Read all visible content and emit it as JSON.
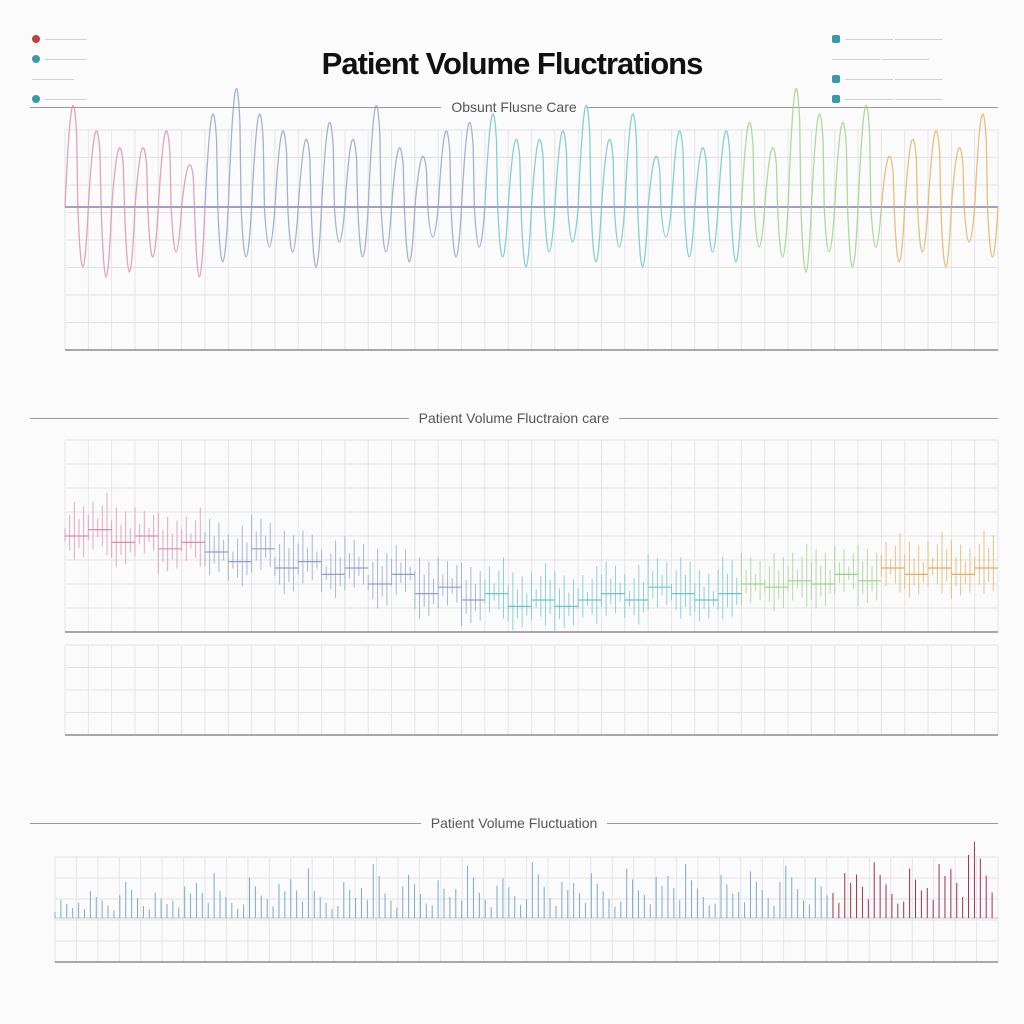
{
  "title": "Patient Volume Fluctrations",
  "colors": {
    "pink": "#d98fa8",
    "blue": "#8fa0c8",
    "teal": "#6cc4c8",
    "green": "#9ccf8a",
    "orange": "#e0b060",
    "red": "#a03050"
  },
  "chart_data": [
    {
      "type": "line",
      "title": "Obsunt Flusne Care",
      "peaks": [
        60,
        45,
        35,
        35,
        45,
        25,
        55,
        70,
        55,
        45,
        40,
        50,
        40,
        60,
        35,
        30,
        45,
        50,
        55,
        40,
        40,
        45,
        60,
        40,
        55,
        30,
        45,
        35,
        45,
        50,
        35,
        70,
        55,
        50,
        60,
        30,
        40,
        45,
        35,
        55
      ],
      "troughs": [
        -120,
        -140,
        -130,
        -100,
        -90,
        -140,
        -110,
        -100,
        -80,
        -90,
        -120,
        -70,
        -100,
        -90,
        -110,
        -60,
        -100,
        -80,
        -100,
        -120,
        -90,
        -70,
        -110,
        -80,
        -120,
        -60,
        -100,
        -90,
        -110,
        -80,
        -100,
        -130,
        -90,
        -120,
        -80,
        -110,
        -90,
        -120,
        -70,
        -100
      ]
    },
    {
      "type": "scatter",
      "title": "Patient Volume Fluctraion care",
      "levels": [
        70,
        72,
        68,
        70,
        66,
        68,
        65,
        62,
        66,
        60,
        62,
        58,
        60,
        55,
        58,
        52,
        54,
        50,
        52,
        48,
        50,
        48,
        50,
        52,
        50,
        54,
        52,
        50,
        52,
        55,
        54,
        56,
        55,
        58,
        56,
        60,
        58,
        60,
        58,
        60
      ]
    },
    {
      "type": "line",
      "title": "Patient Volume Fluctuation",
      "values": [
        20,
        30,
        25,
        40,
        28,
        35,
        50,
        30,
        45,
        38,
        55,
        30,
        40,
        60,
        35,
        48,
        42,
        58,
        36,
        44,
        62,
        40,
        50,
        38,
        55,
        46,
        60,
        42,
        48,
        52,
        40,
        58,
        45,
        50,
        62,
        48,
        55,
        60,
        70,
        85
      ]
    }
  ]
}
